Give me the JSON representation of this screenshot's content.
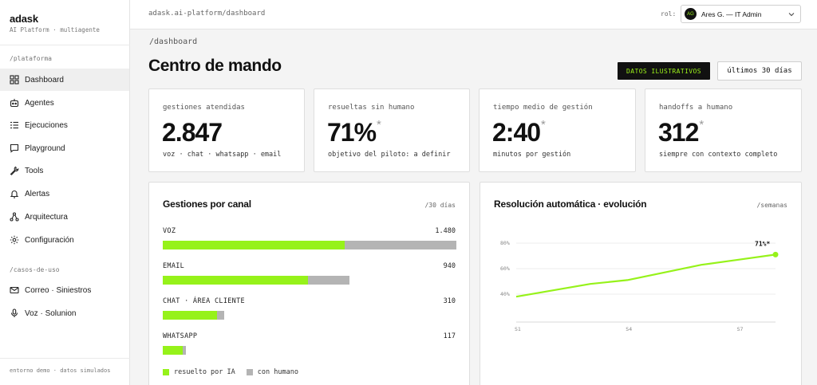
{
  "sidebar": {
    "brand": "adask",
    "brand_sub": "AI Platform · multiagente",
    "section_plataforma": "/plataforma",
    "items": [
      {
        "label": "Dashboard",
        "icon": "dashboard-icon",
        "active": true
      },
      {
        "label": "Agentes",
        "icon": "robot-icon"
      },
      {
        "label": "Ejecuciones",
        "icon": "list-icon"
      },
      {
        "label": "Playground",
        "icon": "chat-icon"
      },
      {
        "label": "Tools",
        "icon": "wrench-icon"
      },
      {
        "label": "Alertas",
        "icon": "bell-icon"
      },
      {
        "label": "Arquitectura",
        "icon": "nodes-icon"
      },
      {
        "label": "Configuración",
        "icon": "gear-icon"
      }
    ],
    "section_casos": "/casos-de-uso",
    "casos": [
      {
        "label": "Correo · Siniestros",
        "icon": "mail-icon"
      },
      {
        "label": "Voz · Solunion",
        "icon": "mic-icon"
      }
    ],
    "footer": "entorno demo · datos simulados"
  },
  "topbar": {
    "path": "adask.ai-platform/dashboard",
    "role_label": "rol:",
    "user_initials": "AG",
    "user_label": "Ares G. — IT Admin"
  },
  "main": {
    "path": "/dashboard",
    "title": "Centro de mando",
    "badge": "DATOS ILUSTRATIVOS",
    "range": "últimos 30 días"
  },
  "kpis": [
    {
      "label": "gestiones atendidas",
      "value": "2.847",
      "asterisk": "",
      "sub": "voz · chat · whatsapp · email"
    },
    {
      "label": "resueltas sin humano",
      "value": "71%",
      "asterisk": "*",
      "sub": "objetivo del piloto: a definir"
    },
    {
      "label": "tiempo medio de gestión",
      "value": "2:40",
      "asterisk": "*",
      "sub": "minutos por gestión"
    },
    {
      "label": "handoffs a humano",
      "value": "312",
      "asterisk": "*",
      "sub": "siempre con contexto completo"
    }
  ],
  "channels_panel": {
    "title": "Gestiones por canal",
    "meta": "/30 días",
    "max_value": 1480,
    "channels": [
      {
        "label": "VOZ",
        "value": "1.480",
        "total": 1480,
        "ai_fraction": 0.62
      },
      {
        "label": "EMAIL",
        "value": "940",
        "total": 940,
        "ai_fraction": 0.78
      },
      {
        "label": "CHAT · ÁREA CLIENTE",
        "value": "310",
        "total": 310,
        "ai_fraction": 0.88
      },
      {
        "label": "WHATSAPP",
        "value": "117",
        "total": 117,
        "ai_fraction": 0.86
      }
    ],
    "legend": {
      "ai": "resuelto por IA",
      "human": "con humano"
    },
    "colors": {
      "ai": "#96f21a",
      "human": "#b4b4b4"
    }
  },
  "evolution_panel": {
    "title": "Resolución automática · evolución",
    "meta": "/semanas"
  },
  "chart_data": {
    "type": "line",
    "title": "Resolución automática · evolución",
    "x": [
      "S1",
      "S2",
      "S3",
      "S4",
      "S5",
      "S6",
      "S7",
      "S8"
    ],
    "x_tick_labels": [
      "S1",
      "S4",
      "S7"
    ],
    "y_tick_labels": [
      "40%",
      "60%",
      "80%"
    ],
    "ylim": [
      20,
      90
    ],
    "series": [
      {
        "values": [
          38,
          43,
          48,
          51,
          57,
          63,
          67,
          71
        ],
        "color": "#96f21a"
      }
    ],
    "end_label": "71%*",
    "grid": true
  }
}
